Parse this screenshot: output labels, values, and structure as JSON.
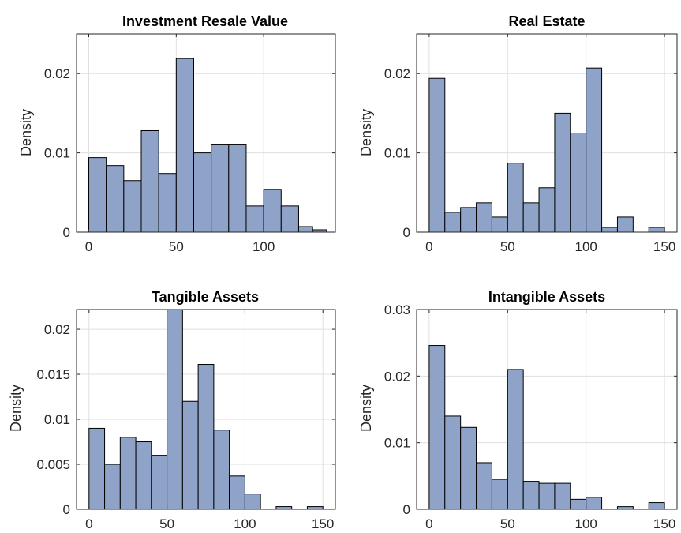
{
  "colors": {
    "bar_fill": "#8fa3c8",
    "bar_edge": "#000000",
    "grid": "#dfdfdf",
    "axis": "#262626"
  },
  "chart_data": [
    {
      "type": "bar",
      "title": "Investment Resale Value",
      "ylabel": "Density",
      "xlabel": "",
      "bin_width": 10,
      "bin_starts": [
        0,
        10,
        20,
        30,
        40,
        50,
        60,
        70,
        80,
        90,
        100,
        110,
        120,
        130
      ],
      "values": [
        0.0094,
        0.0084,
        0.0065,
        0.0128,
        0.0074,
        0.0219,
        0.01,
        0.0111,
        0.0111,
        0.0033,
        0.0054,
        0.0033,
        0,
        0
      ],
      "extra_bins": [
        {
          "start": 120,
          "end": 128,
          "value": 0.0007
        },
        {
          "start": 128,
          "end": 136,
          "value": 0.0003
        }
      ],
      "xlim": [
        -7,
        141
      ],
      "ylim": [
        0,
        0.025
      ],
      "xticks": [
        "0",
        "50",
        "100"
      ],
      "yticks": [
        "0",
        "0.01",
        "0.02"
      ],
      "grid": true
    },
    {
      "type": "bar",
      "title": "Real Estate",
      "ylabel": "Density",
      "xlabel": "",
      "bin_width": 10,
      "bin_starts": [
        0,
        10,
        20,
        30,
        40,
        50,
        60,
        70,
        80,
        90,
        100,
        110,
        120,
        130,
        140
      ],
      "values": [
        0.0194,
        0.0025,
        0.0031,
        0.0037,
        0.0019,
        0.0087,
        0.0037,
        0.0056,
        0.015,
        0.0125,
        0.0207,
        0.0006,
        0.0019,
        0,
        0.0006
      ],
      "xlim": [
        -8,
        158
      ],
      "ylim": [
        0,
        0.025
      ],
      "xticks": [
        "0",
        "50",
        "100",
        "150"
      ],
      "yticks": [
        "0",
        "0.01",
        "0.02"
      ],
      "grid": true
    },
    {
      "type": "bar",
      "title": "Tangible Assets",
      "ylabel": "Density",
      "xlabel": "",
      "bin_width": 10,
      "bin_starts": [
        0,
        10,
        20,
        30,
        40,
        50,
        60,
        70,
        80,
        90,
        100,
        110,
        120,
        130,
        140
      ],
      "values": [
        0.009,
        0.005,
        0.008,
        0.0075,
        0.006,
        0.0222,
        0.012,
        0.0161,
        0.0088,
        0.0037,
        0.0017,
        0,
        0.0003,
        0,
        0.0003
      ],
      "xlim": [
        -8,
        158
      ],
      "ylim": [
        0,
        0.0222
      ],
      "xticks": [
        "0",
        "50",
        "100",
        "150"
      ],
      "yticks": [
        "0",
        "0.005",
        "0.01",
        "0.015",
        "0.02"
      ],
      "grid": true
    },
    {
      "type": "bar",
      "title": "Intangible Assets",
      "ylabel": "Density",
      "xlabel": "",
      "bin_width": 10,
      "bin_starts": [
        0,
        10,
        20,
        30,
        40,
        50,
        60,
        70,
        80,
        90,
        100,
        110,
        120,
        130,
        140
      ],
      "values": [
        0.0246,
        0.014,
        0.0123,
        0.007,
        0.0045,
        0.021,
        0.0042,
        0.0039,
        0.0039,
        0.0015,
        0.0018,
        0,
        0.0004,
        0,
        0.001
      ],
      "xlim": [
        -8,
        158
      ],
      "ylim": [
        0,
        0.03
      ],
      "xticks": [
        "0",
        "50",
        "100",
        "150"
      ],
      "yticks": [
        "0",
        "0.01",
        "0.02",
        "0.03"
      ],
      "grid": true
    }
  ]
}
